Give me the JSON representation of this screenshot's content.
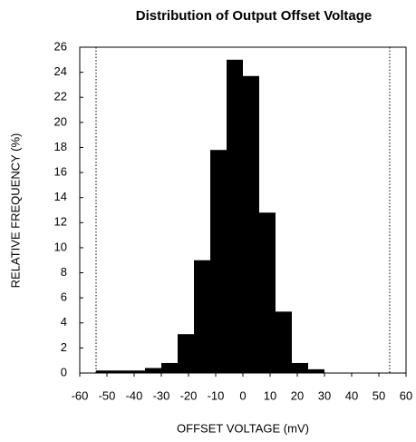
{
  "chart_data": {
    "type": "histogram",
    "title": "Distribution of Output Offset Voltage",
    "xlabel": "OFFSET VOLTAGE (mV)",
    "ylabel": "RELATIVE FREQUENCY (%)",
    "bins": [
      -54,
      -48,
      -42,
      -36,
      -30,
      -24,
      -18,
      -12,
      -6,
      0,
      6,
      12,
      18,
      24,
      30
    ],
    "values": [
      0.2,
      0.2,
      0.2,
      0.4,
      0.8,
      3.1,
      9.0,
      17.8,
      25.0,
      23.7,
      12.8,
      4.9,
      0.8,
      0.3
    ],
    "color": "#000000",
    "reference_lines": [
      -54,
      54
    ],
    "xlim": [
      -60,
      60
    ],
    "xticks": [
      -60,
      -50,
      -40,
      -30,
      -20,
      -10,
      0,
      10,
      20,
      30,
      40,
      50,
      60
    ],
    "ylim": [
      0,
      26
    ],
    "yticks": [
      0,
      2,
      4,
      6,
      8,
      10,
      12,
      14,
      16,
      18,
      20,
      22,
      24,
      26
    ]
  }
}
